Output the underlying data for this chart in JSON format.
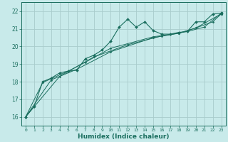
{
  "background_color": "#c8eaea",
  "grid_color": "#a8cccc",
  "line_color": "#1a6e5e",
  "xlabel": "Humidex (Indice chaleur)",
  "ylabel": "",
  "xlim": [
    -0.5,
    23.5
  ],
  "ylim": [
    15.5,
    22.5
  ],
  "yticks": [
    16,
    17,
    18,
    19,
    20,
    21,
    22
  ],
  "xticks": [
    0,
    1,
    2,
    3,
    4,
    5,
    6,
    7,
    8,
    9,
    10,
    11,
    12,
    13,
    14,
    15,
    16,
    17,
    18,
    19,
    20,
    21,
    22,
    23
  ],
  "series1": [
    [
      0,
      16.0
    ],
    [
      1,
      16.6
    ],
    [
      2,
      18.0
    ],
    [
      3,
      18.2
    ],
    [
      4,
      18.5
    ],
    [
      5,
      18.6
    ],
    [
      6,
      18.65
    ],
    [
      7,
      19.3
    ],
    [
      8,
      19.5
    ],
    [
      9,
      19.8
    ],
    [
      10,
      20.3
    ],
    [
      11,
      21.1
    ],
    [
      12,
      21.55
    ],
    [
      13,
      21.1
    ],
    [
      14,
      21.4
    ],
    [
      15,
      20.9
    ],
    [
      16,
      20.7
    ],
    [
      17,
      20.7
    ],
    [
      18,
      20.8
    ],
    [
      19,
      20.85
    ],
    [
      20,
      21.4
    ],
    [
      21,
      21.4
    ],
    [
      22,
      21.85
    ],
    [
      23,
      21.9
    ]
  ],
  "series2": [
    [
      0,
      16.0
    ],
    [
      2,
      17.95
    ],
    [
      5,
      18.6
    ],
    [
      7,
      19.1
    ],
    [
      10,
      19.9
    ],
    [
      15,
      20.55
    ],
    [
      18,
      20.75
    ],
    [
      20,
      21.05
    ],
    [
      22,
      21.4
    ],
    [
      23,
      21.85
    ]
  ],
  "series3": [
    [
      0,
      16.0
    ],
    [
      3,
      18.1
    ],
    [
      6,
      18.7
    ],
    [
      10,
      19.7
    ],
    [
      15,
      20.5
    ],
    [
      18,
      20.75
    ],
    [
      20,
      21.05
    ],
    [
      23,
      21.85
    ]
  ],
  "series4": [
    [
      0,
      16.0
    ],
    [
      4,
      18.3
    ],
    [
      8,
      19.4
    ],
    [
      12,
      20.1
    ],
    [
      16,
      20.6
    ],
    [
      19,
      20.85
    ],
    [
      21,
      21.1
    ],
    [
      23,
      21.9
    ]
  ]
}
